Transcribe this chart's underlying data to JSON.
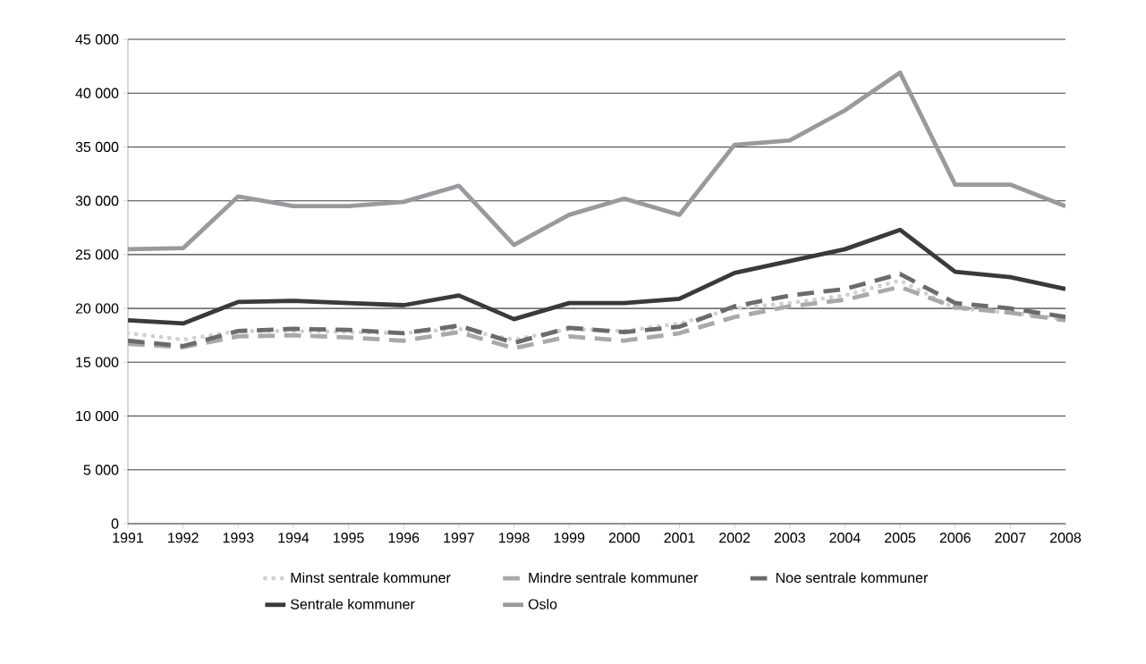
{
  "chart_data": {
    "type": "line",
    "x": [
      1991,
      1992,
      1993,
      1994,
      1995,
      1996,
      1997,
      1998,
      1999,
      2000,
      2001,
      2002,
      2003,
      2004,
      2005,
      2006,
      2007,
      2008
    ],
    "series": [
      {
        "name": "Minst sentrale kommuner",
        "color": "#d0d0d0",
        "line_style": "dotted",
        "values": [
          17700,
          17100,
          17900,
          17900,
          17800,
          17700,
          18100,
          17100,
          18100,
          17900,
          18600,
          20000,
          20500,
          21200,
          22600,
          20000,
          19600,
          19000
        ]
      },
      {
        "name": "Mindre sentrale kommuner",
        "color": "#a9a9ab",
        "line_style": "dashed",
        "values": [
          16700,
          16400,
          17400,
          17500,
          17300,
          17000,
          17800,
          16300,
          17400,
          17000,
          17700,
          19200,
          20200,
          20800,
          22000,
          20100,
          19600,
          18900
        ]
      },
      {
        "name": "Noe sentrale kommuner",
        "color": "#6b6b6e",
        "line_style": "dashed",
        "values": [
          17000,
          16500,
          17900,
          18100,
          18000,
          17700,
          18400,
          16800,
          18200,
          17800,
          18300,
          20200,
          21200,
          21800,
          23200,
          20500,
          20000,
          19200
        ]
      },
      {
        "name": "Sentrale kommuner",
        "color": "#3a3a3a",
        "line_style": "solid",
        "values": [
          18900,
          18600,
          20600,
          20700,
          20500,
          20300,
          21200,
          19000,
          20500,
          20500,
          20900,
          23300,
          24400,
          25500,
          27300,
          23400,
          22900,
          21800
        ]
      },
      {
        "name": "Oslo",
        "color": "#999a9e",
        "line_style": "solid",
        "values": [
          25500,
          25600,
          30400,
          29500,
          29500,
          29900,
          31400,
          25900,
          28700,
          30200,
          28700,
          35200,
          35600,
          38400,
          41900,
          31500,
          31500,
          29500
        ]
      }
    ],
    "xlim": [
      1991,
      2008
    ],
    "xticks": [
      1991,
      1992,
      1993,
      1994,
      1995,
      1996,
      1997,
      1998,
      1999,
      2000,
      2001,
      2002,
      2003,
      2004,
      2005,
      2006,
      2007,
      2008
    ],
    "ylim": [
      0,
      45000
    ],
    "yticks": [
      0,
      {
        "value": 5000,
        "label": "5 000"
      },
      {
        "value": 10000,
        "label": "10 000"
      },
      {
        "value": 15000,
        "label": "15 000"
      },
      {
        "value": 20000,
        "label": "20 000"
      },
      {
        "value": 25000,
        "label": "25 000"
      },
      {
        "value": 30000,
        "label": "30 000"
      },
      {
        "value": 35000,
        "label": "35 000"
      },
      {
        "value": 40000,
        "label": "40 000"
      },
      {
        "value": 45000,
        "label": "45 000"
      }
    ],
    "grid": "y",
    "legend": "bottom",
    "marker": "none"
  }
}
